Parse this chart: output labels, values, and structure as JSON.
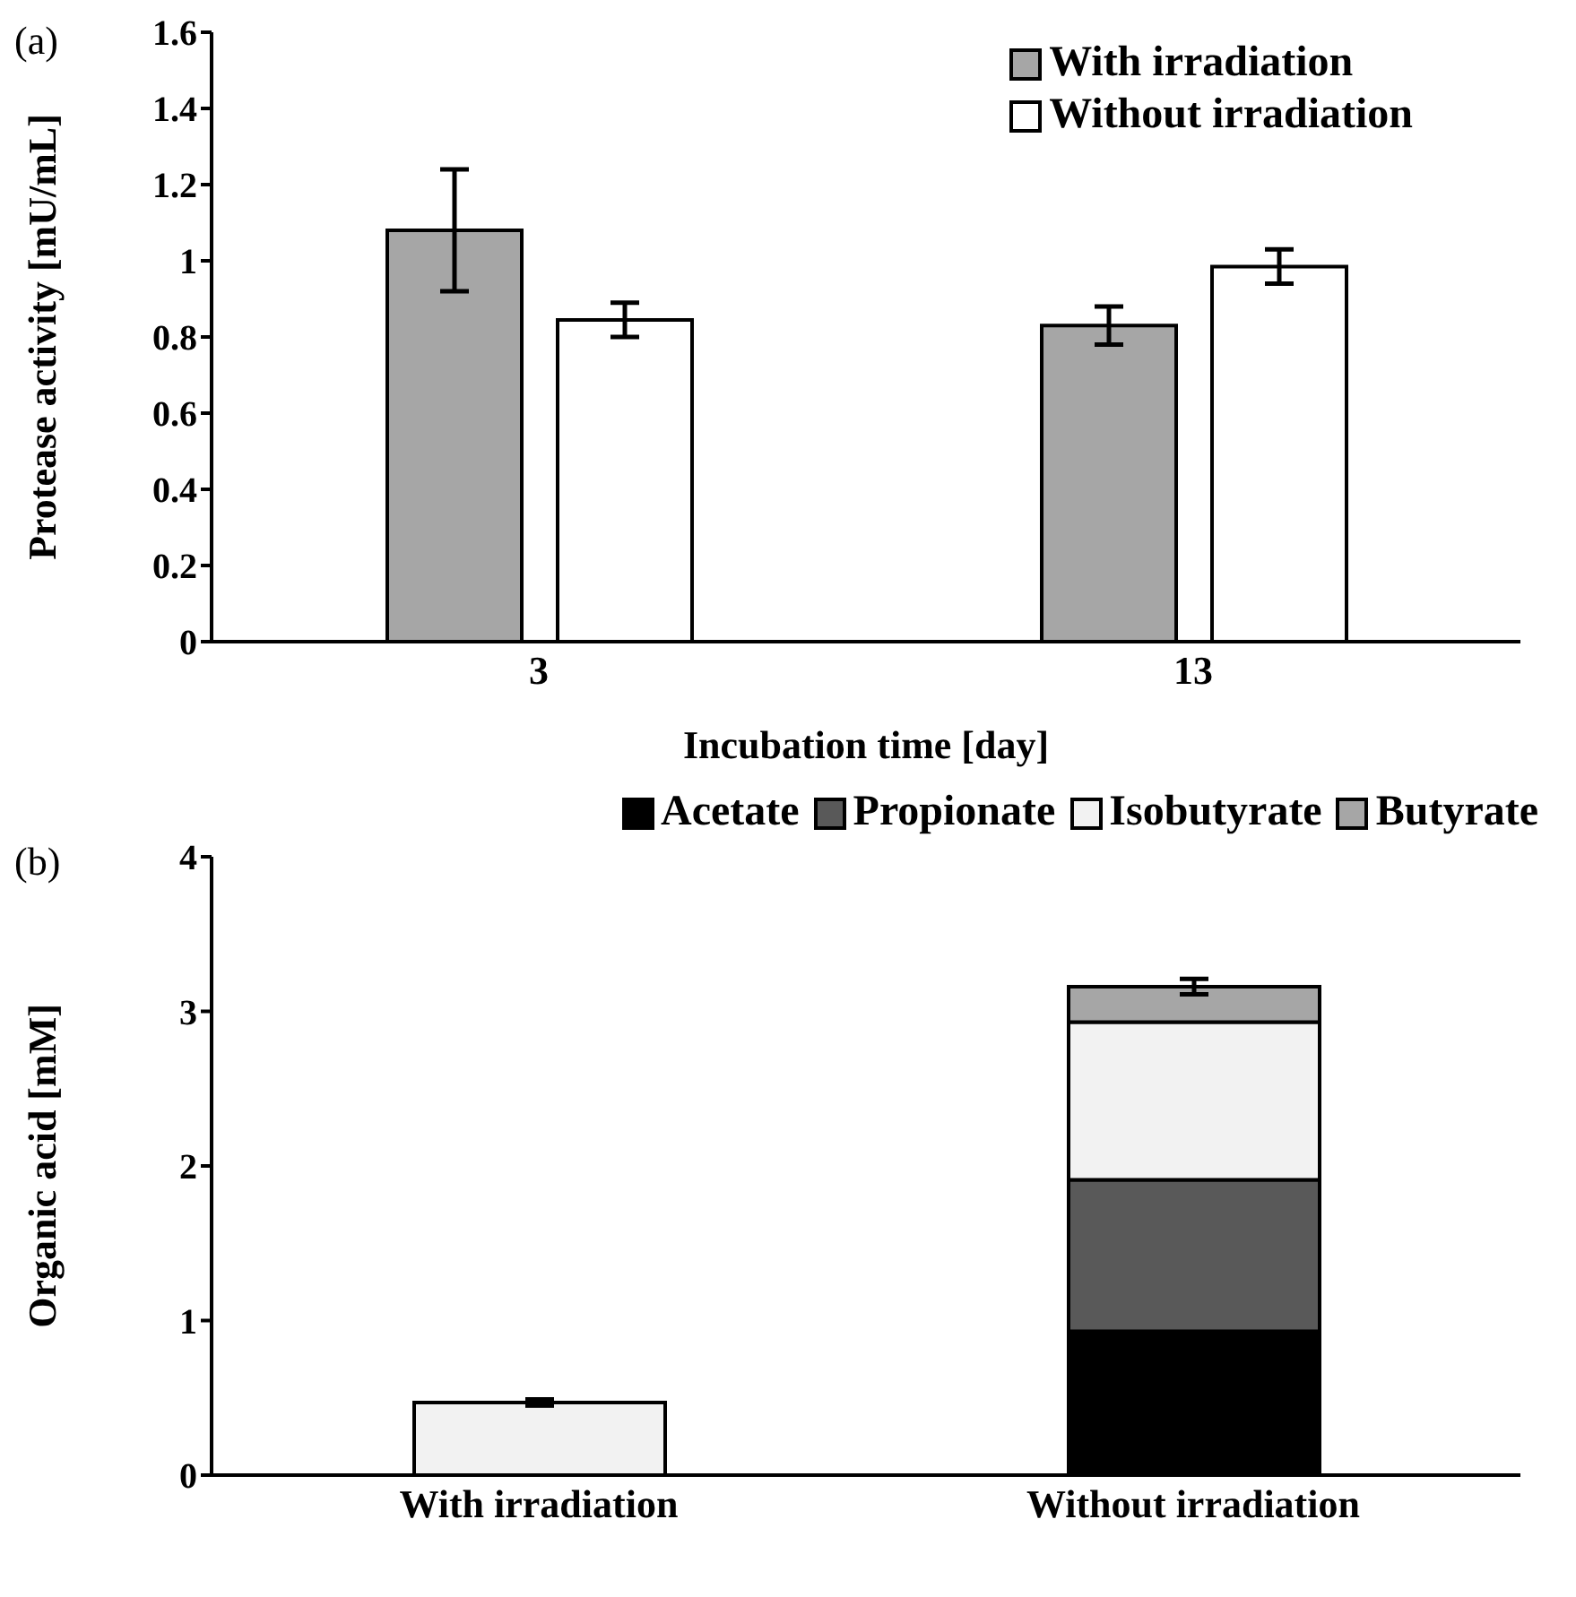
{
  "chart_data": [
    {
      "type": "bar",
      "annotations": [
        "(a)"
      ],
      "xlabel": "Incubation time [day]",
      "ylabel": "Protease activity [mU/mL]",
      "categories": [
        "3",
        "13"
      ],
      "series": [
        {
          "name": "With irradiation",
          "color": "#a6a6a6",
          "values": [
            1.08,
            0.83
          ],
          "errors": [
            0.16,
            0.05
          ]
        },
        {
          "name": "Without irradiation",
          "color": "#ffffff",
          "values": [
            0.845,
            0.985
          ],
          "errors": [
            0.045,
            0.045
          ]
        }
      ],
      "ylim": [
        0,
        1.6
      ],
      "yticks": [
        0,
        0.2,
        0.4,
        0.6,
        0.8,
        1,
        1.2,
        1.4,
        1.6
      ],
      "grid": false,
      "legend": "top right"
    },
    {
      "type": "bar",
      "stacked": true,
      "annotations": [
        "(b)"
      ],
      "ylabel": "Organic acid [mM]",
      "categories": [
        "With irradiation",
        "Without irradiation"
      ],
      "series": [
        {
          "name": "Acetate",
          "color": "#000000",
          "values": [
            0,
            0.93
          ]
        },
        {
          "name": "Propionate",
          "color": "#595959",
          "values": [
            0,
            0.98
          ]
        },
        {
          "name": "Isobutyrate",
          "color": "#f2f2f2",
          "values": [
            0.47,
            1.02
          ],
          "errors": [
            0.02,
            null
          ]
        },
        {
          "name": "Butyrate",
          "color": "#a6a6a6",
          "values": [
            0,
            0.23
          ],
          "errors": [
            null,
            0.05
          ]
        }
      ],
      "ylim": [
        0,
        4
      ],
      "yticks": [
        0,
        1,
        2,
        3,
        4
      ],
      "grid": false,
      "legend": "top"
    }
  ]
}
